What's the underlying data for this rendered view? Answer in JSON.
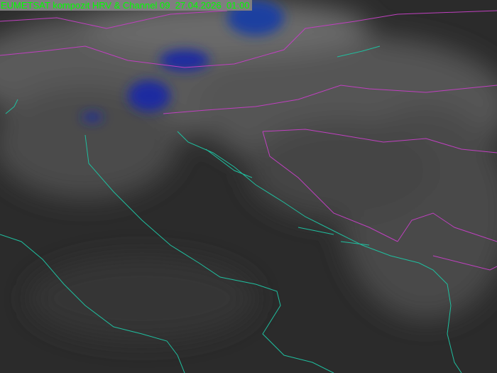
{
  "title": "EUMETSAT kompozit HRV & Channel 09  27.04.2026  01:00",
  "colors": {
    "coastline": "#1fbf9f",
    "borders": "#c040c0",
    "label_text": "#00ff00",
    "label_bg": "#7f7f7f",
    "cold_cloud": "#1020a0"
  }
}
